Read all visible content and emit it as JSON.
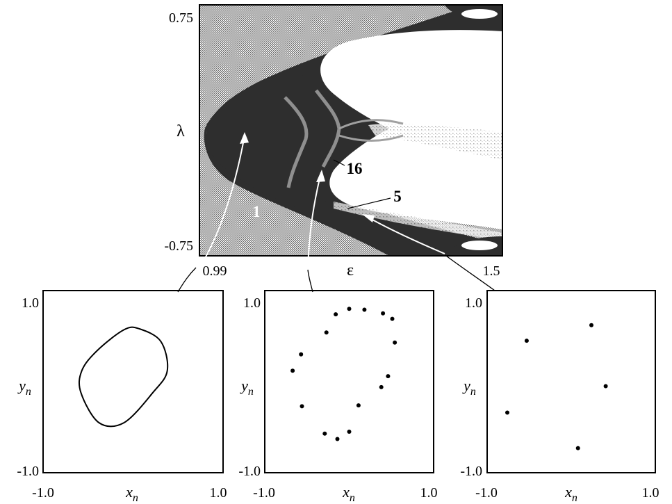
{
  "chart_data": [
    {
      "type": "heatmap",
      "xlabel": "ε",
      "ylabel": "λ",
      "xticks": [
        "0.99",
        "1.5"
      ],
      "yticks": [
        "0.75",
        "-0.75"
      ],
      "xlim": [
        0.99,
        1.5
      ],
      "ylim": [
        -0.75,
        0.75
      ],
      "region_labels": [
        {
          "text": "1",
          "eps": 1.05,
          "lam": -0.54
        },
        {
          "text": "16",
          "eps": 1.24,
          "lam": -0.24
        },
        {
          "text": "5",
          "eps": 1.34,
          "lam": -0.48
        }
      ],
      "colors": {
        "background_pattern": "#b8b8b8",
        "dark_region": "#303030",
        "light_region": "#ffffff",
        "tongue": "#8f8f8f"
      }
    },
    {
      "type": "line",
      "xlabel": "x_n",
      "ylabel": "y_n",
      "xticks": [
        "-1.0",
        "1.0"
      ],
      "yticks": [
        "1.0",
        "-1.0"
      ],
      "xlim": [
        -1.0,
        1.0
      ],
      "ylim": [
        -1.0,
        1.0
      ],
      "series": [
        {
          "values": [
            [
              0.07,
              0.58
            ],
            [
              0.31,
              0.44
            ],
            [
              0.38,
              0.12
            ],
            [
              0.22,
              -0.12
            ],
            [
              -0.1,
              -0.45
            ],
            [
              -0.38,
              -0.45
            ],
            [
              -0.58,
              -0.12
            ],
            [
              -0.57,
              0.12
            ],
            [
              -0.4,
              0.34
            ],
            [
              -0.1,
              0.57
            ]
          ]
        }
      ]
    },
    {
      "type": "scatter",
      "xlabel": "x_n",
      "ylabel": "y_n",
      "xticks": [
        "-1.0",
        "1.0"
      ],
      "yticks": [
        "1.0",
        "-1.0"
      ],
      "xlim": [
        -1.0,
        1.0
      ],
      "ylim": [
        -1.0,
        1.0
      ],
      "points": [
        [
          0.0,
          0.8
        ],
        [
          0.18,
          0.79
        ],
        [
          0.4,
          0.75
        ],
        [
          0.51,
          0.69
        ],
        [
          0.54,
          0.43
        ],
        [
          0.46,
          0.06
        ],
        [
          0.38,
          -0.06
        ],
        [
          0.11,
          -0.26
        ],
        [
          -0.27,
          0.54
        ],
        [
          -0.57,
          0.3
        ],
        [
          -0.67,
          0.12
        ],
        [
          -0.56,
          -0.27
        ],
        [
          -0.29,
          -0.57
        ],
        [
          -0.14,
          -0.63
        ],
        [
          -0.0,
          -0.55
        ],
        [
          -0.16,
          0.74
        ]
      ]
    },
    {
      "type": "scatter",
      "xlabel": "x_n",
      "ylabel": "y_n",
      "xticks": [
        "-1.0",
        "1.0"
      ],
      "yticks": [
        "1.0",
        "-1.0"
      ],
      "xlim": [
        -1.0,
        1.0
      ],
      "ylim": [
        -1.0,
        1.0
      ],
      "points": [
        [
          0.24,
          0.62
        ],
        [
          0.41,
          -0.05
        ],
        [
          -0.53,
          0.45
        ],
        [
          -0.76,
          -0.34
        ],
        [
          0.08,
          -0.73
        ]
      ]
    }
  ]
}
